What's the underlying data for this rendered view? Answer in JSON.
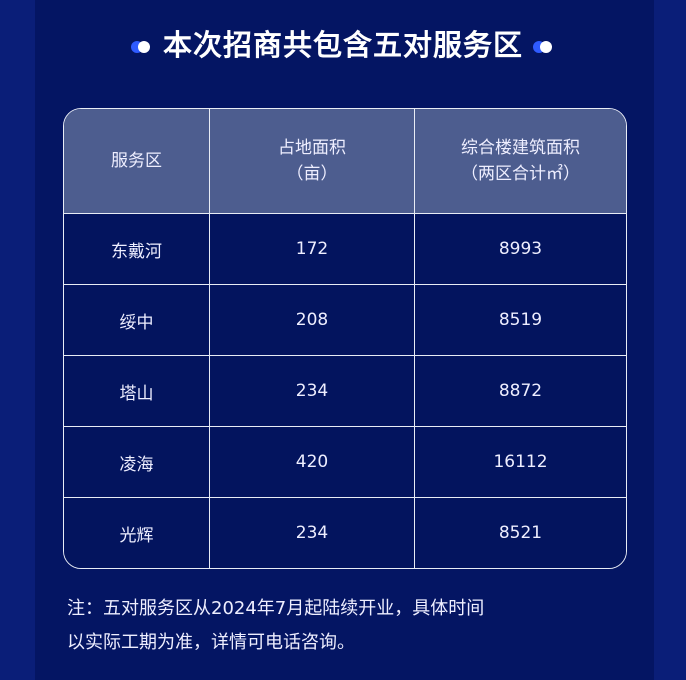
{
  "title": "本次招商共包含五对服务区",
  "table": {
    "headers": [
      {
        "line1": "服务区",
        "line2": ""
      },
      {
        "line1": "占地面积",
        "line2": "（亩）"
      },
      {
        "line1": "综合楼建筑面积",
        "line2": "（两区合计㎡）"
      }
    ],
    "rows": [
      [
        "东戴河",
        "172",
        "8993"
      ],
      [
        "绥中",
        "208",
        "8519"
      ],
      [
        "塔山",
        "234",
        "8872"
      ],
      [
        "凌海",
        "420",
        "16112"
      ],
      [
        "光辉",
        "234",
        "8521"
      ]
    ]
  },
  "note": {
    "line1": "注：五对服务区从2024年7月起陆续开业，具体时间",
    "line2": "以实际工期为准，详情可电话咨询。"
  },
  "colors": {
    "background": "#041563",
    "header": "#4d5d8f",
    "accent": "#2f5bff"
  }
}
